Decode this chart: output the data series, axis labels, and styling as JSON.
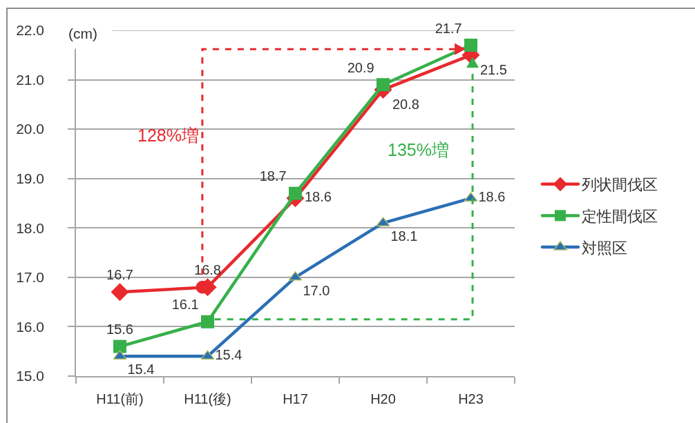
{
  "chart_data": {
    "type": "line",
    "ylabel": "(cm)",
    "categories": [
      "H11(前)",
      "H11(後)",
      "H17",
      "H20",
      "H23"
    ],
    "series": [
      {
        "name": "列状間伐区",
        "color": "#e8292e",
        "marker": "diamond",
        "values": [
          16.7,
          16.8,
          18.6,
          20.8,
          21.5
        ],
        "value_labels": [
          "16.7",
          "16.8",
          "18.6",
          "20.8",
          "21.5"
        ]
      },
      {
        "name": "定性間伐区",
        "color": "#37b04a",
        "marker": "square",
        "values": [
          15.6,
          16.1,
          18.7,
          20.9,
          21.7
        ],
        "value_labels": [
          "15.6",
          "16.1",
          "18.7",
          "20.9",
          "21.7"
        ]
      },
      {
        "name": "対照区",
        "color": "#2b6fb6",
        "marker": "triangle",
        "values": [
          15.4,
          15.4,
          17.0,
          18.1,
          18.6
        ],
        "value_labels": [
          "15.4",
          "15.4",
          "17.0",
          "18.1",
          "18.6"
        ]
      }
    ],
    "ylim": [
      15,
      22
    ],
    "yticks": [
      {
        "value": 15,
        "label": "15.0"
      },
      {
        "value": 16,
        "label": "16.0"
      },
      {
        "value": 17,
        "label": "17.0"
      },
      {
        "value": 18,
        "label": "18.0"
      },
      {
        "value": 19,
        "label": "19.0"
      },
      {
        "value": 20,
        "label": "20.0"
      },
      {
        "value": 21,
        "label": "21.0"
      },
      {
        "value": 22,
        "label": "22.0"
      }
    ],
    "annotations": [
      "128%増",
      "135%増"
    ],
    "grid": "y",
    "legend": "right",
    "line_style": "solid"
  }
}
